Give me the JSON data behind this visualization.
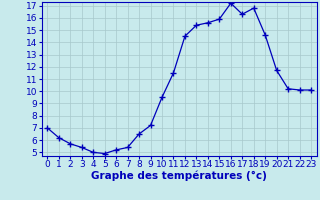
{
  "hours": [
    0,
    1,
    2,
    3,
    4,
    5,
    6,
    7,
    8,
    9,
    10,
    11,
    12,
    13,
    14,
    15,
    16,
    17,
    18,
    19,
    20,
    21,
    22,
    23
  ],
  "temps": [
    7.0,
    6.2,
    5.7,
    5.4,
    5.0,
    4.9,
    5.2,
    5.4,
    6.5,
    7.2,
    9.5,
    11.5,
    14.5,
    15.4,
    15.6,
    15.9,
    17.2,
    16.3,
    16.8,
    14.6,
    11.7,
    10.2,
    10.1,
    10.1
  ],
  "xlabel": "Graphe des températures (°c)",
  "ylim_min": 5,
  "ylim_max": 17,
  "xlim_min": 0,
  "xlim_max": 23,
  "yticks": [
    5,
    6,
    7,
    8,
    9,
    10,
    11,
    12,
    13,
    14,
    15,
    16,
    17
  ],
  "xticks": [
    0,
    1,
    2,
    3,
    4,
    5,
    6,
    7,
    8,
    9,
    10,
    11,
    12,
    13,
    14,
    15,
    16,
    17,
    18,
    19,
    20,
    21,
    22,
    23
  ],
  "line_color": "#0000bb",
  "marker_color": "#0000bb",
  "bg_color": "#c8eaec",
  "grid_color": "#a8c8cc",
  "tick_label_color": "#0000bb",
  "xlabel_color": "#0000bb",
  "font_size": 6.5,
  "xlabel_fontsize": 7.5,
  "xlabel_fontweight": "bold"
}
